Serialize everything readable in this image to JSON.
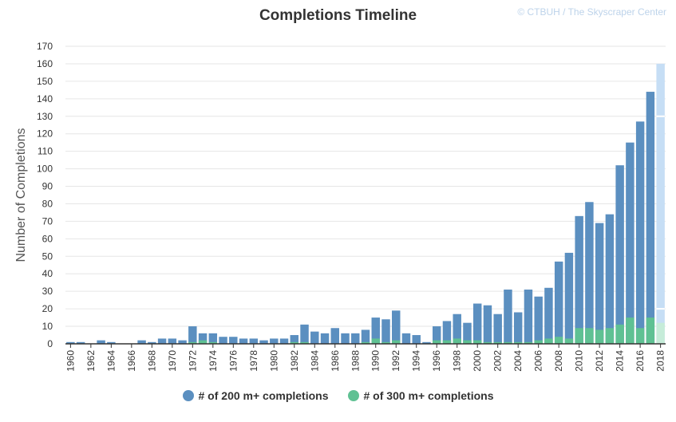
{
  "chart_data": {
    "type": "bar",
    "title": "Completions Timeline",
    "credit": "© CTBUH / The Skyscraper Center",
    "ylabel": "Number of Completions",
    "xlabel": "",
    "ylim": [
      0,
      170
    ],
    "yticks": [
      0,
      10,
      20,
      30,
      40,
      50,
      60,
      70,
      80,
      90,
      100,
      110,
      120,
      130,
      140,
      150,
      160,
      170
    ],
    "grid": true,
    "legend_position": "bottom",
    "colors": {
      "series200": "#5b8fc0",
      "series300": "#5fc193",
      "series200_projected": "#c6def5",
      "series300_projected": "#c6ecd9",
      "grid": "#e6e6e6",
      "axis": "#333333",
      "text": "#333333"
    },
    "categories": [
      1960,
      1961,
      1962,
      1963,
      1964,
      1965,
      1966,
      1967,
      1968,
      1969,
      1970,
      1971,
      1972,
      1973,
      1974,
      1975,
      1976,
      1977,
      1978,
      1979,
      1980,
      1981,
      1982,
      1983,
      1984,
      1985,
      1986,
      1987,
      1988,
      1989,
      1990,
      1991,
      1992,
      1993,
      1994,
      1995,
      1996,
      1997,
      1998,
      1999,
      2000,
      2001,
      2002,
      2003,
      2004,
      2005,
      2006,
      2007,
      2008,
      2009,
      2010,
      2011,
      2012,
      2013,
      2014,
      2015,
      2016,
      2017,
      2018
    ],
    "xtick_labels": [
      "1960",
      "1962",
      "1964",
      "1966",
      "1968",
      "1970",
      "1972",
      "1974",
      "1976",
      "1978",
      "1980",
      "1982",
      "1984",
      "1986",
      "1988",
      "1990",
      "1992",
      "1994",
      "1996",
      "1998",
      "2000",
      "2002",
      "2004",
      "2006",
      "2008",
      "2010",
      "2012",
      "2014",
      "2016",
      "2018"
    ],
    "series": [
      {
        "name": "# of 200 m+ completions",
        "values": [
          1,
          1,
          0,
          2,
          1,
          0,
          0,
          2,
          1,
          3,
          3,
          2,
          10,
          6,
          6,
          4,
          4,
          3,
          3,
          2,
          3,
          3,
          5,
          11,
          7,
          6,
          9,
          6,
          6,
          8,
          15,
          14,
          19,
          6,
          5,
          1,
          10,
          13,
          17,
          12,
          23,
          22,
          17,
          31,
          18,
          31,
          27,
          32,
          47,
          52,
          73,
          81,
          69,
          74,
          102,
          115,
          127,
          144,
          160
        ]
      },
      {
        "name": "# of 300 m+ completions",
        "values": [
          0,
          0,
          0,
          0,
          0,
          0,
          0,
          0,
          0,
          0,
          0,
          0,
          1,
          2,
          1,
          0,
          0,
          0,
          0,
          0,
          0,
          0,
          1,
          1,
          0,
          0,
          0,
          0,
          0,
          1,
          3,
          1,
          2,
          0,
          0,
          0,
          2,
          2,
          3,
          2,
          2,
          1,
          1,
          1,
          1,
          1,
          2,
          3,
          4,
          3,
          9,
          9,
          8,
          9,
          11,
          15,
          9,
          15,
          12
        ]
      }
    ],
    "projected": {
      "year": 2018,
      "series200_projected_value": 160,
      "series200_confirmed_value": 130,
      "series300_projected_value": 12,
      "series300_confirmed_value": 20
    }
  }
}
